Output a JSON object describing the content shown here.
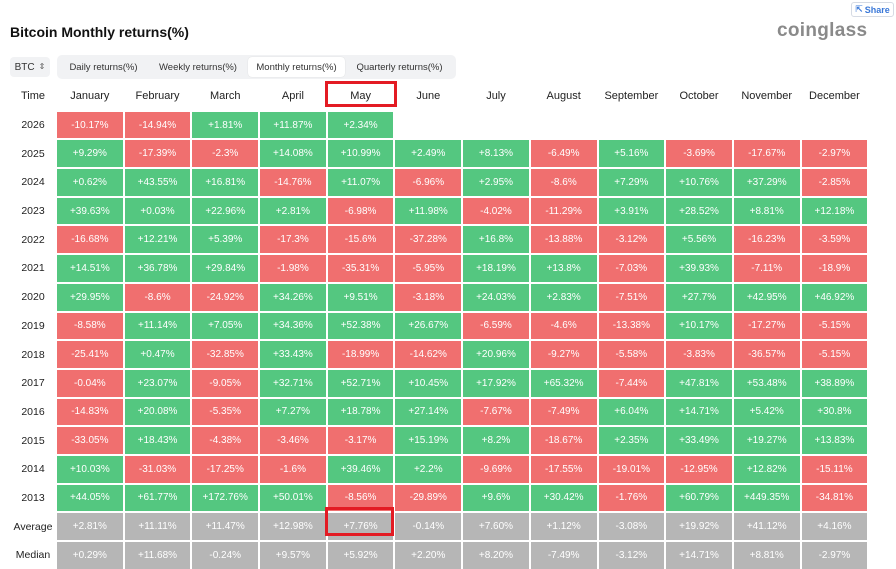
{
  "share_label": "Share",
  "title": "Bitcoin Monthly returns(%)",
  "logo": "coinglass",
  "coin_select": {
    "value": "BTC"
  },
  "tabs": [
    {
      "label": "Daily returns(%)",
      "active": false
    },
    {
      "label": "Weekly returns(%)",
      "active": false
    },
    {
      "label": "Monthly returns(%)",
      "active": true
    },
    {
      "label": "Quarterly returns(%)",
      "active": false
    }
  ],
  "table": {
    "time_header": "Time",
    "months": [
      "January",
      "February",
      "March",
      "April",
      "May",
      "June",
      "July",
      "August",
      "September",
      "October",
      "November",
      "December"
    ],
    "highlighted_month": "May",
    "rows": [
      {
        "label": "2026",
        "values": [
          "-10.17%",
          "-14.94%",
          "+1.81%",
          "+11.87%",
          "+2.34%",
          "",
          "",
          "",
          "",
          "",
          "",
          ""
        ]
      },
      {
        "label": "2025",
        "values": [
          "+9.29%",
          "-17.39%",
          "-2.3%",
          "+14.08%",
          "+10.99%",
          "+2.49%",
          "+8.13%",
          "-6.49%",
          "+5.16%",
          "-3.69%",
          "-17.67%",
          "-2.97%"
        ]
      },
      {
        "label": "2024",
        "values": [
          "+0.62%",
          "+43.55%",
          "+16.81%",
          "-14.76%",
          "+11.07%",
          "-6.96%",
          "+2.95%",
          "-8.6%",
          "+7.29%",
          "+10.76%",
          "+37.29%",
          "-2.85%"
        ]
      },
      {
        "label": "2023",
        "values": [
          "+39.63%",
          "+0.03%",
          "+22.96%",
          "+2.81%",
          "-6.98%",
          "+11.98%",
          "-4.02%",
          "-11.29%",
          "+3.91%",
          "+28.52%",
          "+8.81%",
          "+12.18%"
        ]
      },
      {
        "label": "2022",
        "values": [
          "-16.68%",
          "+12.21%",
          "+5.39%",
          "-17.3%",
          "-15.6%",
          "-37.28%",
          "+16.8%",
          "-13.88%",
          "-3.12%",
          "+5.56%",
          "-16.23%",
          "-3.59%"
        ]
      },
      {
        "label": "2021",
        "values": [
          "+14.51%",
          "+36.78%",
          "+29.84%",
          "-1.98%",
          "-35.31%",
          "-5.95%",
          "+18.19%",
          "+13.8%",
          "-7.03%",
          "+39.93%",
          "-7.11%",
          "-18.9%"
        ]
      },
      {
        "label": "2020",
        "values": [
          "+29.95%",
          "-8.6%",
          "-24.92%",
          "+34.26%",
          "+9.51%",
          "-3.18%",
          "+24.03%",
          "+2.83%",
          "-7.51%",
          "+27.7%",
          "+42.95%",
          "+46.92%"
        ]
      },
      {
        "label": "2019",
        "values": [
          "-8.58%",
          "+11.14%",
          "+7.05%",
          "+34.36%",
          "+52.38%",
          "+26.67%",
          "-6.59%",
          "-4.6%",
          "-13.38%",
          "+10.17%",
          "-17.27%",
          "-5.15%"
        ]
      },
      {
        "label": "2018",
        "values": [
          "-25.41%",
          "+0.47%",
          "-32.85%",
          "+33.43%",
          "-18.99%",
          "-14.62%",
          "+20.96%",
          "-9.27%",
          "-5.58%",
          "-3.83%",
          "-36.57%",
          "-5.15%"
        ]
      },
      {
        "label": "2017",
        "values": [
          "-0.04%",
          "+23.07%",
          "-9.05%",
          "+32.71%",
          "+52.71%",
          "+10.45%",
          "+17.92%",
          "+65.32%",
          "-7.44%",
          "+47.81%",
          "+53.48%",
          "+38.89%"
        ]
      },
      {
        "label": "2016",
        "values": [
          "-14.83%",
          "+20.08%",
          "-5.35%",
          "+7.27%",
          "+18.78%",
          "+27.14%",
          "-7.67%",
          "-7.49%",
          "+6.04%",
          "+14.71%",
          "+5.42%",
          "+30.8%"
        ]
      },
      {
        "label": "2015",
        "values": [
          "-33.05%",
          "+18.43%",
          "-4.38%",
          "-3.46%",
          "-3.17%",
          "+15.19%",
          "+8.2%",
          "-18.67%",
          "+2.35%",
          "+33.49%",
          "+19.27%",
          "+13.83%"
        ]
      },
      {
        "label": "2014",
        "values": [
          "+10.03%",
          "-31.03%",
          "-17.25%",
          "-1.6%",
          "+39.46%",
          "+2.2%",
          "-9.69%",
          "-17.55%",
          "-19.01%",
          "-12.95%",
          "+12.82%",
          "-15.11%"
        ]
      },
      {
        "label": "2013",
        "values": [
          "+44.05%",
          "+61.77%",
          "+172.76%",
          "+50.01%",
          "-8.56%",
          "-29.89%",
          "+9.6%",
          "+30.42%",
          "-1.76%",
          "+60.79%",
          "+449.35%",
          "-34.81%"
        ]
      }
    ],
    "summary_rows": [
      {
        "label": "Average",
        "values": [
          "+2.81%",
          "+11.11%",
          "+11.47%",
          "+12.98%",
          "+7.76%",
          "-0.14%",
          "+7.60%",
          "+1.12%",
          "-3.08%",
          "+19.92%",
          "+41.12%",
          "+4.16%"
        ]
      },
      {
        "label": "Median",
        "values": [
          "+0.29%",
          "+11.68%",
          "-0.24%",
          "+9.57%",
          "+5.92%",
          "+2.20%",
          "+8.20%",
          "-7.49%",
          "-3.12%",
          "+14.71%",
          "+8.81%",
          "-2.97%"
        ]
      }
    ]
  },
  "colors": {
    "positive": "#54c780",
    "negative": "#f06f6f",
    "summary": "#b6b6b6",
    "highlight": "#e31b23"
  }
}
